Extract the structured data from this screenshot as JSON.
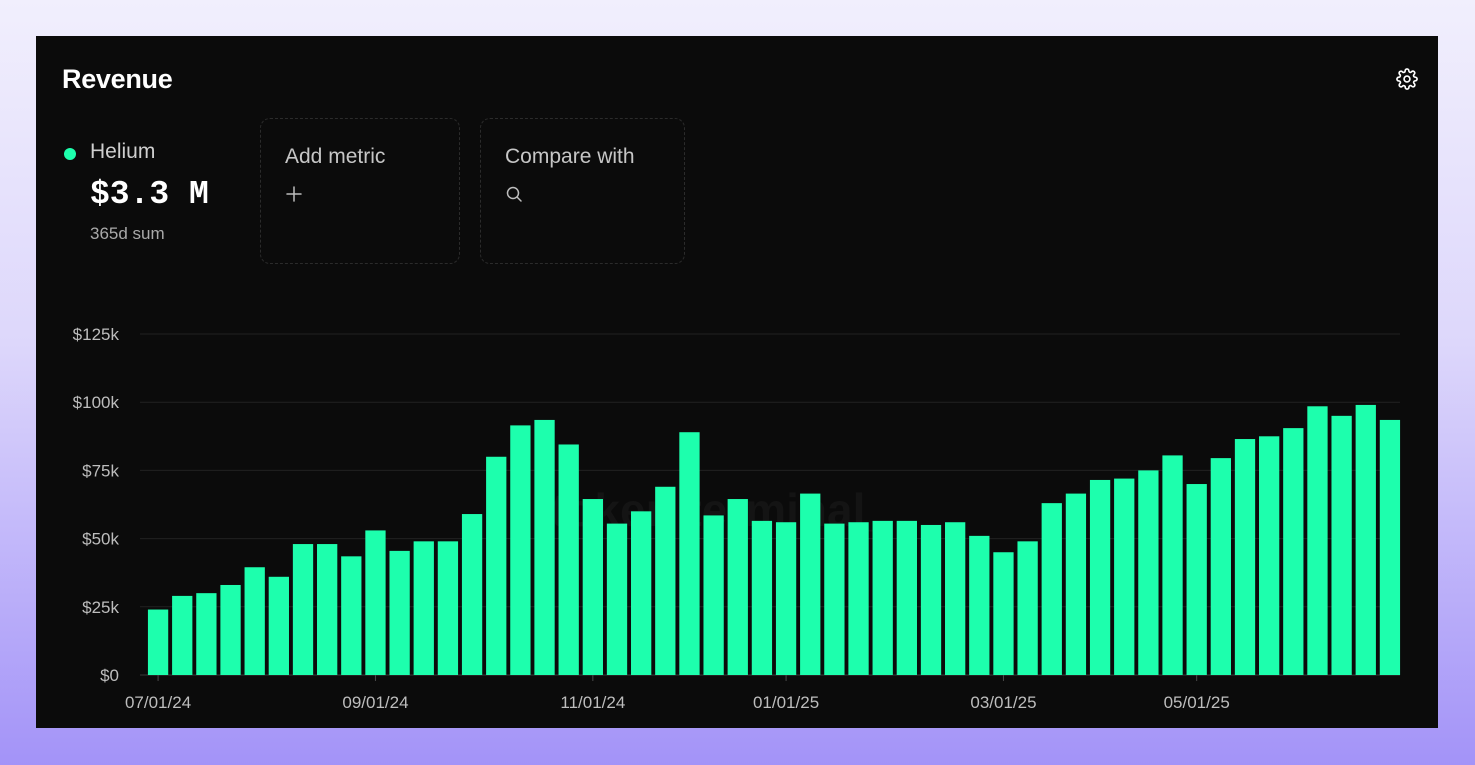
{
  "card": {
    "title": "Revenue",
    "settings_icon": "gear-icon"
  },
  "metric": {
    "name": "Helium",
    "value": "$3.3 M",
    "sub": "365d sum",
    "color": "#1dffad"
  },
  "add_metric": {
    "label": "Add metric",
    "icon": "plus-icon"
  },
  "compare": {
    "label": "Compare with",
    "icon": "search-icon"
  },
  "watermark": "token terminal_",
  "chart_data": {
    "type": "bar",
    "color": "#1dffad",
    "grid": true,
    "xlabel": "",
    "ylabel": "",
    "ylim": [
      0,
      125000
    ],
    "y_ticks": [
      {
        "value": 0,
        "label": "$0"
      },
      {
        "value": 25000,
        "label": "$25k"
      },
      {
        "value": 50000,
        "label": "$50k"
      },
      {
        "value": 75000,
        "label": "$75k"
      },
      {
        "value": 100000,
        "label": "$100k"
      },
      {
        "value": 125000,
        "label": "$125k"
      }
    ],
    "x_ticks": [
      {
        "index": 0,
        "label": "07/01/24"
      },
      {
        "index": 9,
        "label": "09/01/24"
      },
      {
        "index": 18,
        "label": "11/01/24"
      },
      {
        "index": 26,
        "label": "01/01/25"
      },
      {
        "index": 35,
        "label": "03/01/25"
      },
      {
        "index": 43,
        "label": "05/01/25"
      }
    ],
    "series": [
      {
        "values": [
          24000,
          29000,
          30000,
          33000,
          39500,
          36000,
          48000,
          48000,
          43500,
          53000,
          45500,
          49000,
          49000,
          59000,
          80000,
          91500,
          93500,
          84500,
          64500,
          55500,
          60000,
          69000,
          89000,
          58500,
          64500,
          56500,
          56000,
          66500,
          55500,
          56000,
          56500,
          56500,
          55000,
          56000,
          51000,
          45000,
          49000,
          63000,
          66500,
          71500,
          72000,
          75000,
          80500,
          70000,
          79500,
          86500,
          87500,
          90500,
          98500,
          95000,
          99000,
          93500
        ]
      }
    ]
  }
}
